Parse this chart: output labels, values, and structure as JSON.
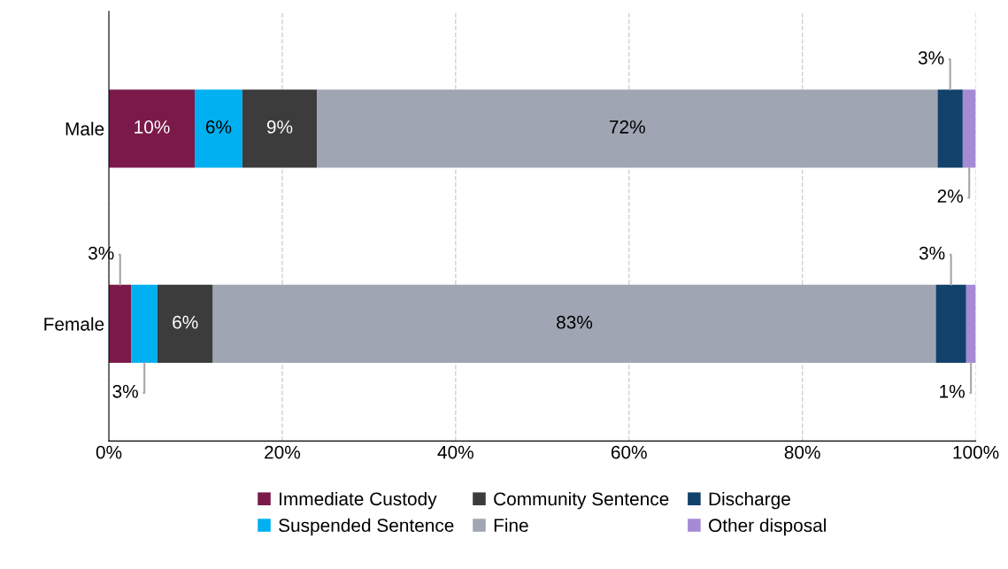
{
  "chart_data": {
    "type": "bar",
    "orientation": "horizontal",
    "stacked": true,
    "categories": [
      "Male",
      "Female"
    ],
    "series": [
      {
        "name": "Immediate Custody",
        "color": "#7b1a4a",
        "values": [
          9.9,
          2.6
        ],
        "value_labels": [
          "10%",
          "3%"
        ]
      },
      {
        "name": "Suspended Sentence",
        "color": "#00b0f0",
        "values": [
          5.5,
          3.0
        ],
        "value_labels": [
          "6%",
          "3%"
        ]
      },
      {
        "name": "Community Sentence",
        "color": "#3c3c3c",
        "values": [
          8.6,
          6.4
        ],
        "value_labels": [
          "9%",
          "6%"
        ]
      },
      {
        "name": "Fine",
        "color": "#a0a5b3",
        "values": [
          71.6,
          83.4
        ],
        "value_labels": [
          "72%",
          "83%"
        ]
      },
      {
        "name": "Discharge",
        "color": "#12416b",
        "values": [
          2.9,
          3.5
        ],
        "value_labels": [
          "3%",
          "3%"
        ]
      },
      {
        "name": "Other disposal",
        "color": "#a68ad6",
        "values": [
          1.5,
          1.1
        ],
        "value_labels": [
          "2%",
          "1%"
        ]
      }
    ],
    "xlim": [
      0,
      100
    ],
    "xticks": [
      {
        "value": 0,
        "label": "0%"
      },
      {
        "value": 20,
        "label": "20%"
      },
      {
        "value": 40,
        "label": "40%"
      },
      {
        "value": 60,
        "label": "60%"
      },
      {
        "value": 80,
        "label": "80%"
      },
      {
        "value": 100,
        "label": "100%"
      }
    ],
    "grid": "x",
    "legend": "bottom"
  }
}
